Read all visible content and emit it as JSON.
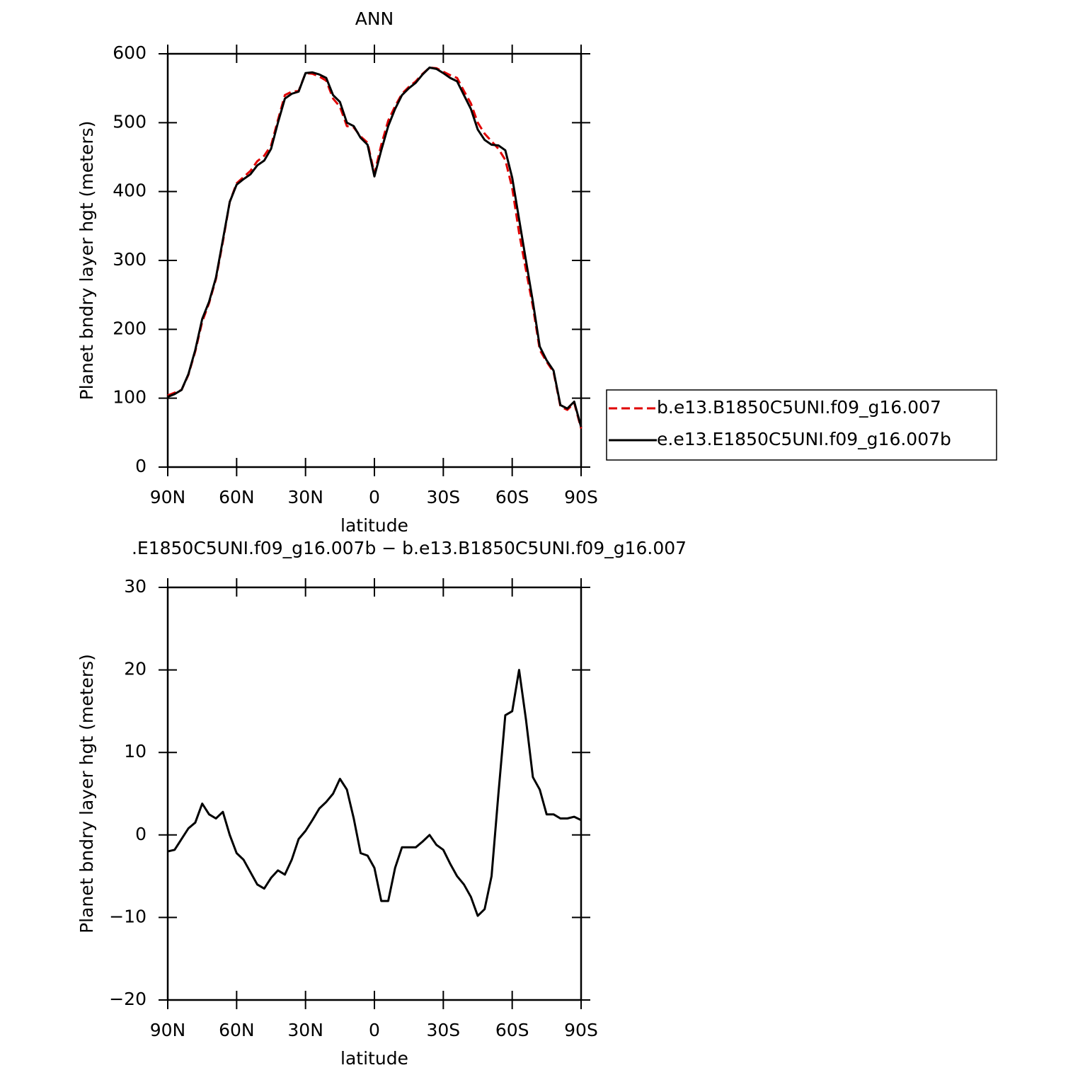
{
  "chart_data": [
    {
      "type": "line",
      "title": "ANN",
      "ylabel": "Planet bndry layer hgt (meters)",
      "xlabel": "latitude",
      "x": [
        90,
        87,
        84,
        81,
        78,
        75,
        72,
        69,
        66,
        63,
        60,
        57,
        54,
        51,
        48,
        45,
        42,
        39,
        36,
        33,
        30,
        27,
        24,
        21,
        18,
        15,
        12,
        9,
        6,
        3,
        0,
        -3,
        -6,
        -9,
        -12,
        -15,
        -18,
        -21,
        -24,
        -27,
        -30,
        -33,
        -36,
        -39,
        -42,
        -45,
        -48,
        -51,
        -54,
        -57,
        -60,
        -63,
        -66,
        -69,
        -72,
        -75,
        -78,
        -81,
        -84,
        -87,
        -90
      ],
      "xlim": [
        90,
        -90
      ],
      "xticks": [
        {
          "value": 90,
          "label": "90N"
        },
        {
          "value": 60,
          "label": "60N"
        },
        {
          "value": 30,
          "label": "30N"
        },
        0,
        {
          "value": -30,
          "label": "30S"
        },
        {
          "value": -60,
          "label": "60S"
        },
        {
          "value": -90,
          "label": "90S"
        }
      ],
      "ylim": [
        0,
        600
      ],
      "yticks": [
        0,
        100,
        200,
        300,
        400,
        500,
        600
      ],
      "legend": "right",
      "series": [
        {
          "name": "b.e13.B1850C5UNI.f09_g16.007",
          "color": "#e00000",
          "dash": true,
          "values": [
            104,
            108,
            112,
            134,
            168,
            211,
            238,
            273,
            327,
            385,
            412,
            421,
            430,
            444,
            452,
            467,
            504,
            540,
            545,
            546,
            572,
            571,
            567,
            561,
            535,
            523,
            495,
            493,
            480,
            471,
            426,
            468,
            503,
            524,
            542,
            552,
            560,
            571,
            580,
            579,
            574,
            569,
            565,
            546,
            528,
            500,
            484,
            473,
            462,
            446,
            405,
            340,
            286,
            233,
            170,
            153,
            138,
            88,
            83,
            93,
            56
          ]
        },
        {
          "name": "e.e13.E1850C5UNI.f09_g16.007b",
          "color": "#000000",
          "dash": false,
          "values": [
            102,
            106,
            112,
            135,
            170,
            215,
            240,
            275,
            330,
            385,
            410,
            418,
            425,
            438,
            445,
            462,
            500,
            535,
            542,
            545,
            572,
            573,
            570,
            565,
            540,
            530,
            500,
            495,
            478,
            468,
            422,
            460,
            495,
            520,
            540,
            550,
            558,
            570,
            580,
            578,
            572,
            565,
            560,
            540,
            520,
            490,
            475,
            468,
            467,
            460,
            420,
            360,
            300,
            240,
            175,
            155,
            140,
            90,
            85,
            95,
            58
          ]
        }
      ]
    },
    {
      "type": "line",
      "title": ".E1850C5UNI.f09_g16.007b − b.e13.B1850C5UNI.f09_g16.007",
      "ylabel": "Planet bndry layer hgt (meters)",
      "xlabel": "latitude",
      "x": [
        90,
        87,
        84,
        81,
        78,
        75,
        72,
        69,
        66,
        63,
        60,
        57,
        54,
        51,
        48,
        45,
        42,
        39,
        36,
        33,
        30,
        27,
        24,
        21,
        18,
        15,
        12,
        9,
        6,
        3,
        0,
        -3,
        -6,
        -9,
        -12,
        -15,
        -18,
        -21,
        -24,
        -27,
        -30,
        -33,
        -36,
        -39,
        -42,
        -45,
        -48,
        -51,
        -54,
        -57,
        -60,
        -63,
        -66,
        -69,
        -72,
        -75,
        -78,
        -81,
        -84,
        -87,
        -90
      ],
      "xlim": [
        90,
        -90
      ],
      "xticks": [
        {
          "value": 90,
          "label": "90N"
        },
        {
          "value": 60,
          "label": "60N"
        },
        {
          "value": 30,
          "label": "30N"
        },
        0,
        {
          "value": -30,
          "label": "30S"
        },
        {
          "value": -60,
          "label": "60S"
        },
        {
          "value": -90,
          "label": "90S"
        }
      ],
      "ylim": [
        -20,
        30
      ],
      "yticks": [
        {
          "value": -20,
          "label": "−20"
        },
        {
          "value": -10,
          "label": "−10"
        },
        0,
        10,
        20,
        30
      ],
      "series": [
        {
          "color": "#000000",
          "dash": false,
          "values": [
            -2,
            -1.8,
            -0.5,
            0.8,
            1.5,
            3.8,
            2.5,
            2,
            2.8,
            0,
            -2.2,
            -3,
            -4.5,
            -6,
            -6.5,
            -5.2,
            -4.3,
            -4.8,
            -3,
            -0.5,
            0.5,
            1.8,
            3.2,
            4,
            5,
            6.8,
            5.5,
            2,
            -2.2,
            -2.5,
            -4,
            -8,
            -8,
            -4,
            -1.5,
            -1.5,
            -1.5,
            -0.8,
            0,
            -1.2,
            -1.8,
            -3.5,
            -5,
            -6,
            -7.5,
            -9.8,
            -9,
            -5,
            5,
            14.5,
            15,
            20,
            14,
            7,
            5.5,
            2.5,
            2.5,
            2,
            2,
            2.2,
            1.8
          ]
        }
      ]
    }
  ]
}
